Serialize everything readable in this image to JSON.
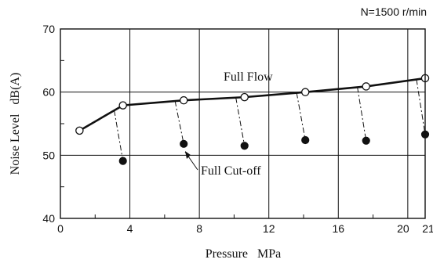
{
  "chart_data": {
    "type": "line",
    "annotation_top": "N=1500 r/min",
    "xlabel": "Pressure   MPa",
    "ylabel": "Noise Level   dB(A)",
    "xlim": [
      0,
      21
    ],
    "ylim": [
      40,
      70
    ],
    "x_ticks": [
      0,
      4,
      8,
      12,
      16,
      20,
      21
    ],
    "x_tick_labels": [
      "0",
      "4",
      "8",
      "12",
      "16",
      "20",
      "21"
    ],
    "y_ticks": [
      40,
      50,
      60,
      70
    ],
    "y_tick_labels": [
      "40",
      "50",
      "60",
      "70"
    ],
    "grid": true,
    "series": [
      {
        "name": "Full Flow",
        "marker": "open-circle",
        "x": [
          1.1,
          3.6,
          7.1,
          10.6,
          14.1,
          17.6,
          21.0
        ],
        "y": [
          53.9,
          57.9,
          58.7,
          59.2,
          60.0,
          60.9,
          62.2
        ]
      },
      {
        "name": "Full Cut-off",
        "marker": "filled-circle",
        "x": [
          3.6,
          7.1,
          10.6,
          14.1,
          17.6,
          21.0
        ],
        "y": [
          49.1,
          51.8,
          51.5,
          52.4,
          52.3,
          53.3
        ]
      }
    ],
    "connector_from_x": [
      3.1,
      6.6,
      10.1,
      13.6,
      17.1,
      20.5
    ]
  }
}
